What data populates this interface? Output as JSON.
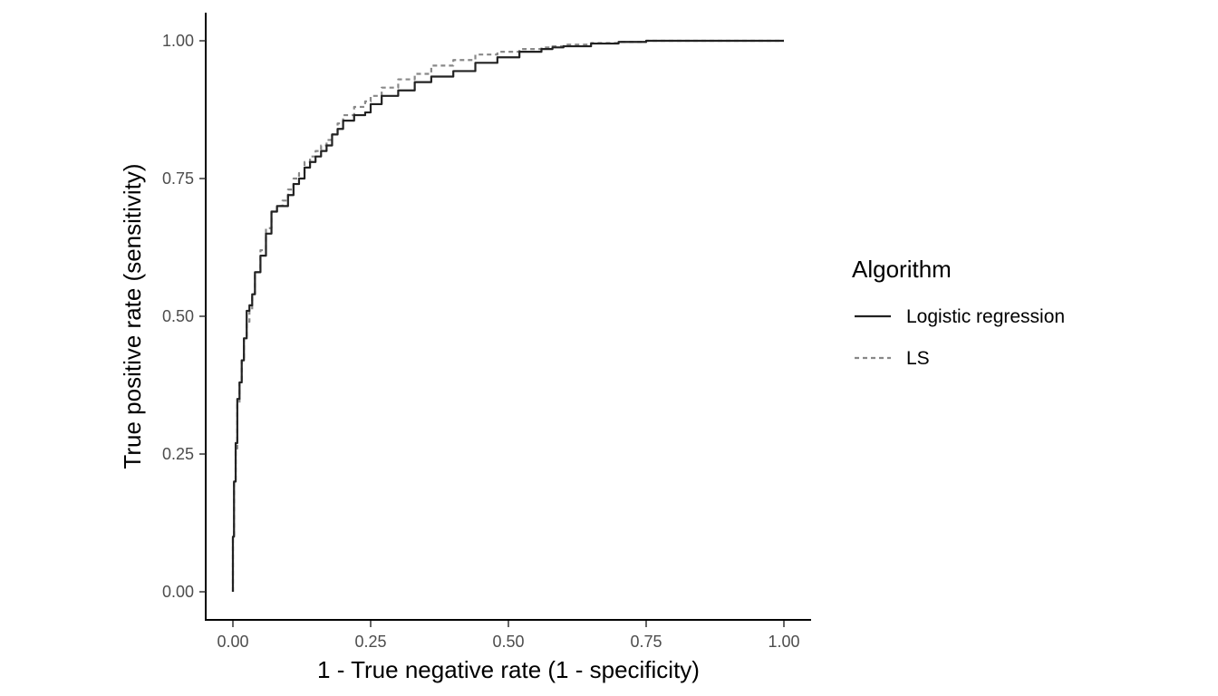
{
  "chart_data": {
    "type": "line",
    "title": "",
    "xlabel": "1 - True negative rate (1 - specificity)",
    "ylabel": "True positive rate (sensitivity)",
    "xlim": [
      0,
      1
    ],
    "ylim": [
      0,
      1
    ],
    "x_ticks": [
      "0.00",
      "0.25",
      "0.50",
      "0.75",
      "1.00"
    ],
    "y_ticks": [
      "0.00",
      "0.25",
      "0.50",
      "0.75",
      "1.00"
    ],
    "grid": false,
    "legend": {
      "title": "Algorithm",
      "position": "right"
    },
    "series": [
      {
        "name": "Logistic regression",
        "color": "#222222",
        "dash": "solid",
        "x": [
          0,
          0.002,
          0.005,
          0.008,
          0.012,
          0.016,
          0.02,
          0.025,
          0.03,
          0.035,
          0.04,
          0.05,
          0.06,
          0.07,
          0.08,
          0.09,
          0.1,
          0.11,
          0.12,
          0.13,
          0.14,
          0.15,
          0.16,
          0.17,
          0.18,
          0.19,
          0.2,
          0.22,
          0.24,
          0.25,
          0.27,
          0.3,
          0.33,
          0.36,
          0.4,
          0.44,
          0.48,
          0.52,
          0.56,
          0.58,
          0.6,
          0.65,
          0.7,
          0.75,
          0.78,
          0.85,
          0.9,
          1.0
        ],
        "y": [
          0,
          0.1,
          0.2,
          0.27,
          0.35,
          0.38,
          0.42,
          0.46,
          0.51,
          0.52,
          0.54,
          0.58,
          0.61,
          0.65,
          0.69,
          0.7,
          0.7,
          0.72,
          0.74,
          0.75,
          0.77,
          0.78,
          0.79,
          0.8,
          0.81,
          0.83,
          0.84,
          0.855,
          0.865,
          0.87,
          0.885,
          0.9,
          0.91,
          0.925,
          0.935,
          0.945,
          0.96,
          0.97,
          0.98,
          0.985,
          0.988,
          0.99,
          0.995,
          0.998,
          1.0,
          1.0,
          1.0,
          1.0
        ]
      },
      {
        "name": "LS",
        "color": "#888888",
        "dash": "dashed",
        "x": [
          0,
          0.002,
          0.005,
          0.008,
          0.012,
          0.016,
          0.02,
          0.025,
          0.03,
          0.035,
          0.04,
          0.05,
          0.06,
          0.07,
          0.08,
          0.09,
          0.1,
          0.11,
          0.12,
          0.13,
          0.14,
          0.15,
          0.16,
          0.17,
          0.18,
          0.19,
          0.2,
          0.22,
          0.24,
          0.25,
          0.27,
          0.3,
          0.33,
          0.36,
          0.4,
          0.44,
          0.48,
          0.52,
          0.56,
          0.58,
          0.6,
          0.65,
          0.7,
          0.75,
          0.78,
          0.85,
          0.9,
          1.0
        ],
        "y": [
          0,
          0.1,
          0.2,
          0.26,
          0.34,
          0.38,
          0.42,
          0.46,
          0.49,
          0.51,
          0.54,
          0.58,
          0.62,
          0.66,
          0.69,
          0.7,
          0.71,
          0.73,
          0.75,
          0.76,
          0.78,
          0.79,
          0.8,
          0.81,
          0.82,
          0.83,
          0.85,
          0.865,
          0.88,
          0.89,
          0.9,
          0.915,
          0.93,
          0.94,
          0.955,
          0.965,
          0.975,
          0.98,
          0.985,
          0.988,
          0.99,
          0.993,
          0.996,
          0.998,
          1.0,
          1.0,
          1.0,
          1.0
        ]
      }
    ]
  }
}
